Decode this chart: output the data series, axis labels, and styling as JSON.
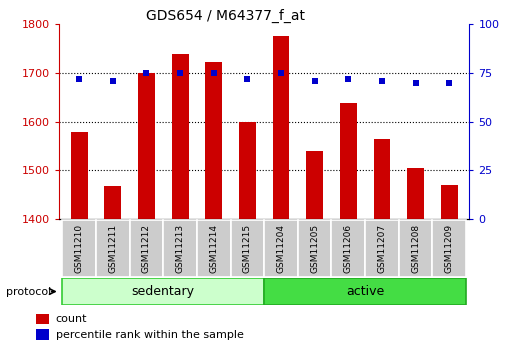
{
  "title": "GDS654 / M64377_f_at",
  "samples": [
    "GSM11210",
    "GSM11211",
    "GSM11212",
    "GSM11213",
    "GSM11214",
    "GSM11215",
    "GSM11204",
    "GSM11205",
    "GSM11206",
    "GSM11207",
    "GSM11208",
    "GSM11209"
  ],
  "counts": [
    1578,
    1468,
    1700,
    1738,
    1723,
    1600,
    1775,
    1540,
    1638,
    1565,
    1505,
    1470
  ],
  "percentile_ranks": [
    72,
    71,
    75,
    75,
    75,
    72,
    75,
    71,
    72,
    71,
    70,
    70
  ],
  "sedentary_count": 6,
  "active_count": 6,
  "ylim_left": [
    1400,
    1800
  ],
  "ylim_right": [
    0,
    100
  ],
  "yticks_left": [
    1400,
    1500,
    1600,
    1700,
    1800
  ],
  "yticks_right": [
    0,
    25,
    50,
    75,
    100
  ],
  "bar_color": "#cc0000",
  "dot_color": "#0000cc",
  "sedentary_color": "#ccffcc",
  "active_color": "#44dd44",
  "label_bg_color": "#cccccc",
  "base_value": 1400,
  "bar_width": 0.5,
  "title_fontsize": 10,
  "tick_fontsize": 8,
  "label_fontsize": 6.5,
  "group_fontsize": 9,
  "legend_fontsize": 8
}
